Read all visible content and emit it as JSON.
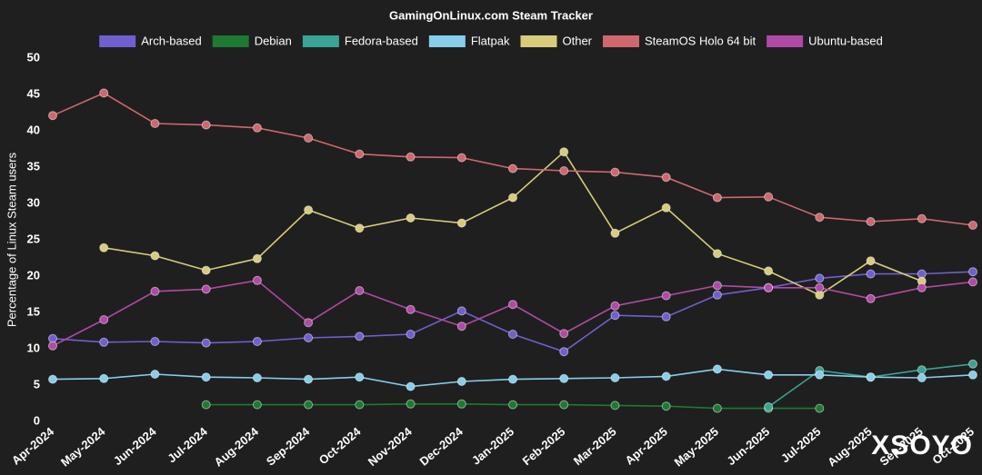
{
  "chart_data": {
    "type": "line",
    "title": "GamingOnLinux.com Steam Tracker",
    "y_label": "Percentage of Linux Steam users",
    "categories": [
      "Apr-2024",
      "May-2024",
      "Jun-2024",
      "Jul-2024",
      "Aug-2024",
      "Sep-2024",
      "Oct-2024",
      "Nov-2024",
      "Dec-2024",
      "Jan-2025",
      "Feb-2025",
      "Mar-2025",
      "Apr-2025",
      "May-2025",
      "Jun-2025",
      "Jul-2025",
      "Aug-2025",
      "Sep-2025",
      "Oct-2025"
    ],
    "ylim": [
      0,
      50
    ],
    "yticks": [
      0,
      5,
      10,
      15,
      20,
      25,
      30,
      35,
      40,
      45,
      50
    ],
    "grid": false,
    "series": [
      {
        "name": "Arch-based",
        "color": "#6f5fcf",
        "values": [
          11.4,
          10.9,
          11.0,
          10.8,
          11.0,
          11.5,
          11.7,
          12.0,
          15.2,
          12.0,
          9.6,
          14.6,
          14.4,
          17.4,
          18.4,
          19.7,
          20.3,
          20.3,
          20.6
        ]
      },
      {
        "name": "Debian",
        "color": "#1c7a32",
        "values": [
          null,
          null,
          null,
          2.3,
          2.3,
          2.3,
          2.3,
          2.4,
          2.4,
          2.3,
          2.3,
          2.2,
          2.1,
          1.8,
          1.8,
          1.8,
          null,
          null,
          null
        ]
      },
      {
        "name": "Fedora-based",
        "color": "#3aa394",
        "values": [
          null,
          null,
          null,
          null,
          null,
          null,
          null,
          null,
          null,
          null,
          null,
          null,
          null,
          null,
          2.0,
          7.0,
          6.1,
          7.1,
          7.9
        ]
      },
      {
        "name": "Flatpak",
        "color": "#87ceeb",
        "values": [
          5.8,
          5.9,
          6.5,
          6.1,
          6.0,
          5.8,
          6.1,
          4.8,
          5.5,
          5.8,
          5.9,
          6.0,
          6.2,
          7.2,
          6.4,
          6.4,
          6.1,
          6.0,
          6.4
        ]
      },
      {
        "name": "Other",
        "color": "#d8cc7c",
        "values": [
          null,
          23.9,
          22.8,
          20.8,
          22.4,
          29.1,
          26.6,
          28.0,
          27.3,
          30.8,
          37.1,
          25.9,
          29.4,
          23.1,
          20.7,
          17.4,
          22.1,
          19.3,
          null
        ]
      },
      {
        "name": "SteamOS Holo 64 bit",
        "color": "#d0676e",
        "values": [
          42.1,
          45.2,
          41.0,
          40.8,
          40.4,
          39.0,
          36.8,
          36.4,
          36.3,
          34.8,
          34.5,
          34.3,
          33.6,
          30.8,
          30.9,
          28.1,
          27.5,
          27.9,
          27.0
        ]
      },
      {
        "name": "Ubuntu-based",
        "color": "#b04aa6",
        "values": [
          10.4,
          14.0,
          17.9,
          18.2,
          19.4,
          13.6,
          18.0,
          15.4,
          13.1,
          16.1,
          12.1,
          15.9,
          17.3,
          18.7,
          18.4,
          18.4,
          16.9,
          18.4,
          19.2
        ]
      }
    ]
  },
  "watermark": "XSOYO"
}
